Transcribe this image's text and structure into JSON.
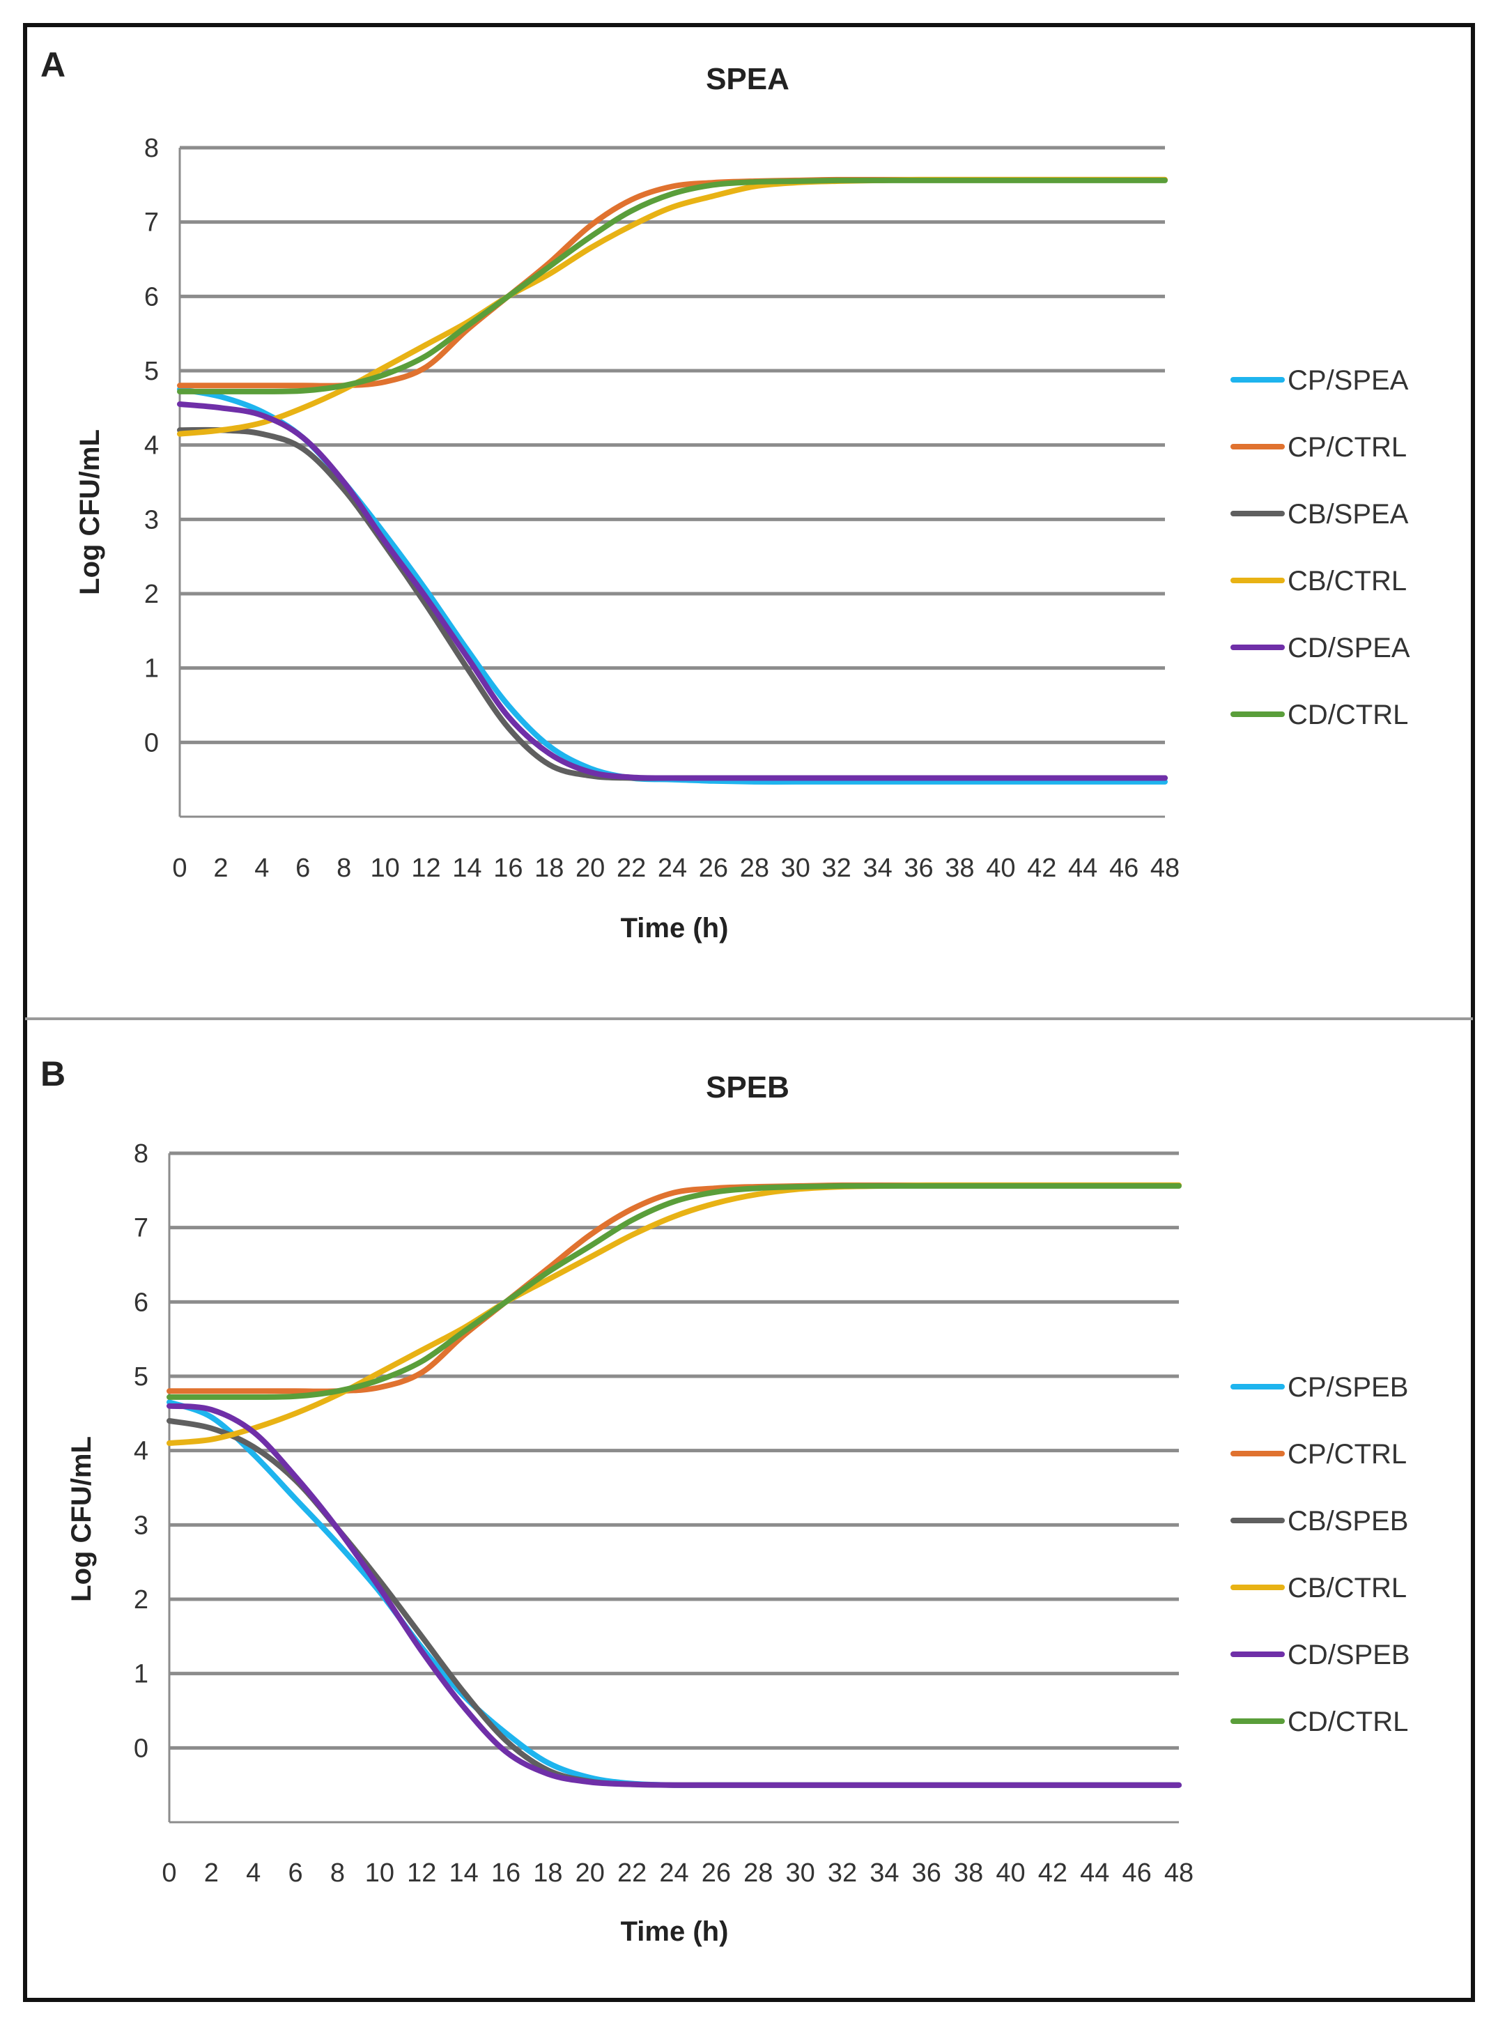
{
  "chart_data": [
    {
      "type": "line",
      "panel_label": "A",
      "title": "SPEA",
      "xlabel": "Time (h)",
      "ylabel": "Log CFU/mL",
      "xlim": [
        0,
        48
      ],
      "ylim": [
        -1,
        8
      ],
      "x_ticks": [
        "0",
        "2",
        "4",
        "6",
        "8",
        "10",
        "12",
        "14",
        "16",
        "18",
        "20",
        "22",
        "24",
        "26",
        "28",
        "30",
        "32",
        "34",
        "36",
        "38",
        "40",
        "42",
        "44",
        "46",
        "48"
      ],
      "y_ticks": [
        "0",
        "1",
        "2",
        "3",
        "4",
        "5",
        "6",
        "7",
        "8"
      ],
      "grid": true,
      "legend_position": "right",
      "x": [
        0,
        2,
        4,
        6,
        8,
        10,
        12,
        14,
        16,
        18,
        20,
        22,
        24,
        26,
        28,
        30,
        32,
        34,
        36,
        38,
        40,
        42,
        44,
        46,
        48
      ],
      "series": [
        {
          "name": "CP/SPEA",
          "color": "#1eb4ee",
          "values": [
            4.75,
            4.65,
            4.45,
            4.1,
            3.5,
            2.8,
            2.05,
            1.25,
            0.5,
            -0.05,
            -0.35,
            -0.48,
            -0.5,
            -0.52,
            -0.53,
            -0.53,
            -0.53,
            -0.53,
            -0.53,
            -0.53,
            -0.53,
            -0.53,
            -0.53,
            -0.53,
            -0.53
          ]
        },
        {
          "name": "CP/CTRL",
          "color": "#e0722f",
          "values": [
            4.8,
            4.8,
            4.8,
            4.8,
            4.8,
            4.85,
            5.05,
            5.55,
            6.0,
            6.45,
            6.95,
            7.3,
            7.48,
            7.53,
            7.55,
            7.56,
            7.57,
            7.57,
            7.57,
            7.57,
            7.57,
            7.57,
            7.57,
            7.57,
            7.57
          ]
        },
        {
          "name": "CB/SPEA",
          "color": "#5f5f5f",
          "values": [
            4.2,
            4.2,
            4.15,
            3.95,
            3.4,
            2.65,
            1.85,
            1.0,
            0.2,
            -0.3,
            -0.45,
            -0.48,
            -0.48,
            -0.48,
            -0.48,
            -0.48,
            -0.48,
            -0.48,
            -0.48,
            -0.48,
            -0.48,
            -0.48,
            -0.48,
            -0.48,
            -0.48
          ]
        },
        {
          "name": "CB/CTRL",
          "color": "#e8b214",
          "values": [
            4.15,
            4.2,
            4.3,
            4.5,
            4.75,
            5.05,
            5.35,
            5.65,
            6.0,
            6.3,
            6.65,
            6.95,
            7.2,
            7.35,
            7.48,
            7.53,
            7.55,
            7.56,
            7.57,
            7.57,
            7.57,
            7.57,
            7.57,
            7.57,
            7.57
          ]
        },
        {
          "name": "CD/SPEA",
          "color": "#6f2fa8",
          "values": [
            4.55,
            4.5,
            4.4,
            4.1,
            3.5,
            2.7,
            1.95,
            1.15,
            0.35,
            -0.15,
            -0.4,
            -0.47,
            -0.48,
            -0.48,
            -0.48,
            -0.48,
            -0.48,
            -0.48,
            -0.48,
            -0.48,
            -0.48,
            -0.48,
            -0.48,
            -0.48,
            -0.48
          ]
        },
        {
          "name": "CD/CTRL",
          "color": "#5a9e3a",
          "values": [
            4.72,
            4.72,
            4.72,
            4.73,
            4.8,
            4.95,
            5.2,
            5.6,
            6.0,
            6.4,
            6.8,
            7.15,
            7.38,
            7.5,
            7.54,
            7.55,
            7.56,
            7.56,
            7.56,
            7.56,
            7.56,
            7.56,
            7.56,
            7.56,
            7.56
          ]
        }
      ]
    },
    {
      "type": "line",
      "panel_label": "B",
      "title": "SPEB",
      "xlabel": "Time (h)",
      "ylabel": "Log CFU/mL",
      "xlim": [
        0,
        48
      ],
      "ylim": [
        -1,
        8
      ],
      "x_ticks": [
        "0",
        "2",
        "4",
        "6",
        "8",
        "10",
        "12",
        "14",
        "16",
        "18",
        "20",
        "22",
        "24",
        "26",
        "28",
        "30",
        "32",
        "34",
        "36",
        "38",
        "40",
        "42",
        "44",
        "46",
        "48"
      ],
      "y_ticks": [
        "0",
        "1",
        "2",
        "3",
        "4",
        "5",
        "6",
        "7",
        "8"
      ],
      "grid": true,
      "legend_position": "right",
      "x": [
        0,
        2,
        4,
        6,
        8,
        10,
        12,
        14,
        16,
        18,
        20,
        22,
        24,
        26,
        28,
        30,
        32,
        34,
        36,
        38,
        40,
        42,
        44,
        46,
        48
      ],
      "series": [
        {
          "name": "CP/SPEB",
          "color": "#1eb4ee",
          "values": [
            4.65,
            4.45,
            3.95,
            3.35,
            2.75,
            2.1,
            1.35,
            0.7,
            0.2,
            -0.2,
            -0.4,
            -0.48,
            -0.5,
            -0.5,
            -0.5,
            -0.5,
            -0.5,
            -0.5,
            -0.5,
            -0.5,
            -0.5,
            -0.5,
            -0.5,
            -0.5,
            -0.5
          ]
        },
        {
          "name": "CP/CTRL",
          "color": "#e0722f",
          "values": [
            4.8,
            4.8,
            4.8,
            4.8,
            4.8,
            4.85,
            5.05,
            5.55,
            6.0,
            6.45,
            6.9,
            7.25,
            7.47,
            7.53,
            7.55,
            7.56,
            7.57,
            7.57,
            7.57,
            7.57,
            7.57,
            7.57,
            7.57,
            7.57,
            7.57
          ]
        },
        {
          "name": "CB/SPEB",
          "color": "#5f5f5f",
          "values": [
            4.4,
            4.3,
            4.05,
            3.6,
            2.95,
            2.25,
            1.5,
            0.75,
            0.1,
            -0.3,
            -0.45,
            -0.49,
            -0.5,
            -0.5,
            -0.5,
            -0.5,
            -0.5,
            -0.5,
            -0.5,
            -0.5,
            -0.5,
            -0.5,
            -0.5,
            -0.5,
            -0.5
          ]
        },
        {
          "name": "CB/CTRL",
          "color": "#e8b214",
          "values": [
            4.1,
            4.15,
            4.3,
            4.5,
            4.75,
            5.05,
            5.35,
            5.65,
            6.0,
            6.3,
            6.6,
            6.9,
            7.15,
            7.33,
            7.45,
            7.52,
            7.55,
            7.56,
            7.57,
            7.57,
            7.57,
            7.57,
            7.57,
            7.57,
            7.57
          ]
        },
        {
          "name": "CD/SPEB",
          "color": "#6f2fa8",
          "values": [
            4.6,
            4.55,
            4.25,
            3.65,
            2.95,
            2.15,
            1.3,
            0.55,
            -0.05,
            -0.35,
            -0.46,
            -0.49,
            -0.5,
            -0.5,
            -0.5,
            -0.5,
            -0.5,
            -0.5,
            -0.5,
            -0.5,
            -0.5,
            -0.5,
            -0.5,
            -0.5,
            -0.5
          ]
        },
        {
          "name": "CD/CTRL",
          "color": "#5a9e3a",
          "values": [
            4.72,
            4.72,
            4.72,
            4.73,
            4.8,
            4.95,
            5.2,
            5.6,
            6.0,
            6.4,
            6.75,
            7.1,
            7.35,
            7.48,
            7.53,
            7.55,
            7.56,
            7.56,
            7.56,
            7.56,
            7.56,
            7.56,
            7.56,
            7.56,
            7.56
          ]
        }
      ]
    }
  ],
  "colors": {
    "gridline": "#8c8c8c",
    "frame": "#111111",
    "divider": "#9a9a9a"
  }
}
